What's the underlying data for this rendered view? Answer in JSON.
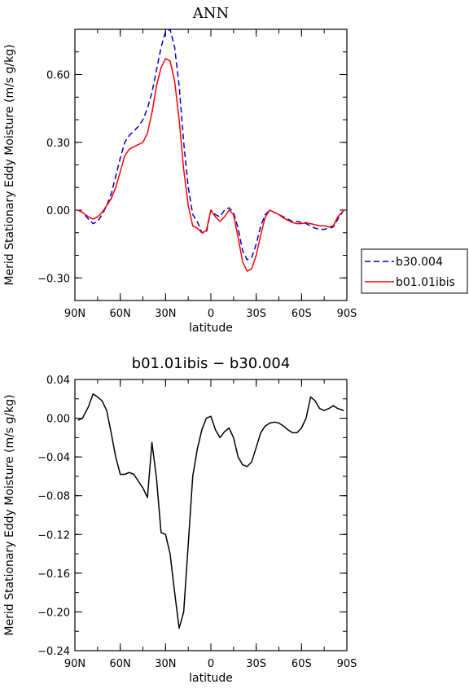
{
  "chart_data": [
    {
      "type": "line",
      "title": "ANN",
      "xlabel": "latitude",
      "ylabel": "Merid Stationary Eddy Moisture (m/s g/kg)",
      "xlim": [
        90,
        -90
      ],
      "ylim": [
        -0.4,
        0.8
      ],
      "x_ticks": [
        90,
        60,
        30,
        0,
        -30,
        -60,
        -90
      ],
      "x_tick_labels": [
        "90N",
        "60N",
        "30N",
        "0",
        "30S",
        "60S",
        "90S"
      ],
      "y_ticks": [
        0.6,
        0.3,
        0.0,
        -0.3
      ],
      "y_tick_labels": [
        "0.60",
        "0.30",
        "0.00",
        "−0.30"
      ],
      "legend": {
        "placement": "right",
        "entries": [
          "b30.004",
          "b01.01ibis"
        ]
      },
      "series": [
        {
          "name": "b30.004",
          "color": "#0000cc",
          "dash": "dashed",
          "x": [
            88,
            85,
            81,
            78,
            75,
            72,
            69,
            66,
            63,
            60,
            57,
            54,
            51,
            48,
            45,
            42,
            39,
            36,
            33,
            30,
            27,
            24,
            21,
            18,
            15,
            12,
            9,
            6,
            3,
            0,
            -3,
            -6,
            -9,
            -12,
            -15,
            -18,
            -21,
            -24,
            -27,
            -30,
            -33,
            -36,
            -39,
            -42,
            -45,
            -48,
            -51,
            -54,
            -57,
            -60,
            -63,
            -66,
            -69,
            -72,
            -75,
            -78,
            -81,
            -84,
            -88
          ],
          "y": [
            0.0,
            -0.01,
            -0.04,
            -0.06,
            -0.05,
            -0.02,
            0.02,
            0.07,
            0.15,
            0.23,
            0.3,
            0.33,
            0.35,
            0.37,
            0.4,
            0.45,
            0.52,
            0.62,
            0.72,
            0.79,
            0.8,
            0.72,
            0.55,
            0.3,
            0.1,
            -0.02,
            -0.05,
            -0.1,
            -0.1,
            0.0,
            -0.02,
            -0.03,
            0.0,
            0.01,
            -0.01,
            -0.08,
            -0.18,
            -0.22,
            -0.21,
            -0.15,
            -0.07,
            -0.02,
            0.0,
            -0.01,
            -0.02,
            -0.03,
            -0.04,
            -0.05,
            -0.05,
            -0.055,
            -0.06,
            -0.07,
            -0.08,
            -0.085,
            -0.085,
            -0.08,
            -0.075,
            -0.04,
            0.0
          ]
        },
        {
          "name": "b01.01ibis",
          "color": "#ff0000",
          "dash": "solid",
          "x": [
            88,
            85,
            81,
            78,
            75,
            72,
            69,
            66,
            63,
            60,
            57,
            54,
            51,
            48,
            45,
            42,
            39,
            36,
            33,
            30,
            27,
            24,
            21,
            18,
            15,
            12,
            9,
            6,
            3,
            0,
            -3,
            -6,
            -9,
            -12,
            -15,
            -18,
            -21,
            -24,
            -27,
            -30,
            -33,
            -36,
            -39,
            -42,
            -45,
            -48,
            -51,
            -54,
            -57,
            -60,
            -63,
            -66,
            -69,
            -72,
            -75,
            -78,
            -81,
            -84,
            -88
          ],
          "y": [
            0.0,
            -0.01,
            -0.03,
            -0.04,
            -0.03,
            -0.01,
            0.02,
            0.05,
            0.1,
            0.17,
            0.24,
            0.27,
            0.28,
            0.29,
            0.3,
            0.34,
            0.43,
            0.55,
            0.63,
            0.67,
            0.66,
            0.57,
            0.4,
            0.18,
            0.02,
            -0.07,
            -0.08,
            -0.1,
            -0.09,
            0.0,
            -0.03,
            -0.05,
            -0.03,
            0.0,
            -0.02,
            -0.12,
            -0.23,
            -0.27,
            -0.26,
            -0.2,
            -0.11,
            -0.03,
            0.0,
            -0.01,
            -0.02,
            -0.035,
            -0.045,
            -0.055,
            -0.06,
            -0.06,
            -0.055,
            -0.06,
            -0.065,
            -0.07,
            -0.07,
            -0.075,
            -0.07,
            -0.03,
            0.0
          ]
        }
      ]
    },
    {
      "type": "line",
      "title": "b01.01ibis − b30.004",
      "xlabel": "latitude",
      "ylabel": "Merid Stationary Eddy Moisture (m/s g/kg)",
      "xlim": [
        90,
        -90
      ],
      "ylim": [
        -0.24,
        0.04
      ],
      "x_ticks": [
        90,
        60,
        30,
        0,
        -30,
        -60,
        -90
      ],
      "x_tick_labels": [
        "90N",
        "60N",
        "30N",
        "0",
        "30S",
        "60S",
        "90S"
      ],
      "y_ticks": [
        0.04,
        0.0,
        -0.04,
        -0.08,
        -0.12,
        -0.16,
        -0.2,
        -0.24
      ],
      "y_tick_labels": [
        "0.04",
        "0.00",
        "−0.04",
        "−0.08",
        "−0.12",
        "−0.16",
        "−0.20",
        "−0.24"
      ],
      "series": [
        {
          "color": "#000000",
          "dash": "solid",
          "x": [
            88,
            85,
            81,
            78,
            75,
            72,
            69,
            66,
            63,
            60,
            57,
            54,
            51,
            48,
            45,
            42,
            39,
            36,
            33,
            30,
            27,
            24,
            21,
            18,
            15,
            12,
            9,
            6,
            3,
            0,
            -3,
            -6,
            -9,
            -12,
            -15,
            -18,
            -21,
            -24,
            -27,
            -30,
            -33,
            -36,
            -39,
            -42,
            -45,
            -48,
            -51,
            -54,
            -57,
            -60,
            -63,
            -66,
            -69,
            -72,
            -75,
            -78,
            -81,
            -84,
            -88
          ],
          "y": [
            -0.002,
            0.0,
            0.012,
            0.025,
            0.022,
            0.018,
            0.008,
            -0.015,
            -0.04,
            -0.058,
            -0.058,
            -0.056,
            -0.058,
            -0.065,
            -0.072,
            -0.082,
            -0.025,
            -0.062,
            -0.118,
            -0.12,
            -0.14,
            -0.18,
            -0.217,
            -0.2,
            -0.13,
            -0.06,
            -0.032,
            -0.012,
            0.0,
            0.002,
            -0.012,
            -0.02,
            -0.014,
            -0.01,
            -0.02,
            -0.04,
            -0.048,
            -0.05,
            -0.045,
            -0.03,
            -0.015,
            -0.008,
            -0.005,
            -0.004,
            -0.005,
            -0.008,
            -0.012,
            -0.015,
            -0.015,
            -0.01,
            0.0,
            0.022,
            0.018,
            0.01,
            0.008,
            0.01,
            0.013,
            0.01,
            0.008
          ]
        }
      ]
    }
  ]
}
